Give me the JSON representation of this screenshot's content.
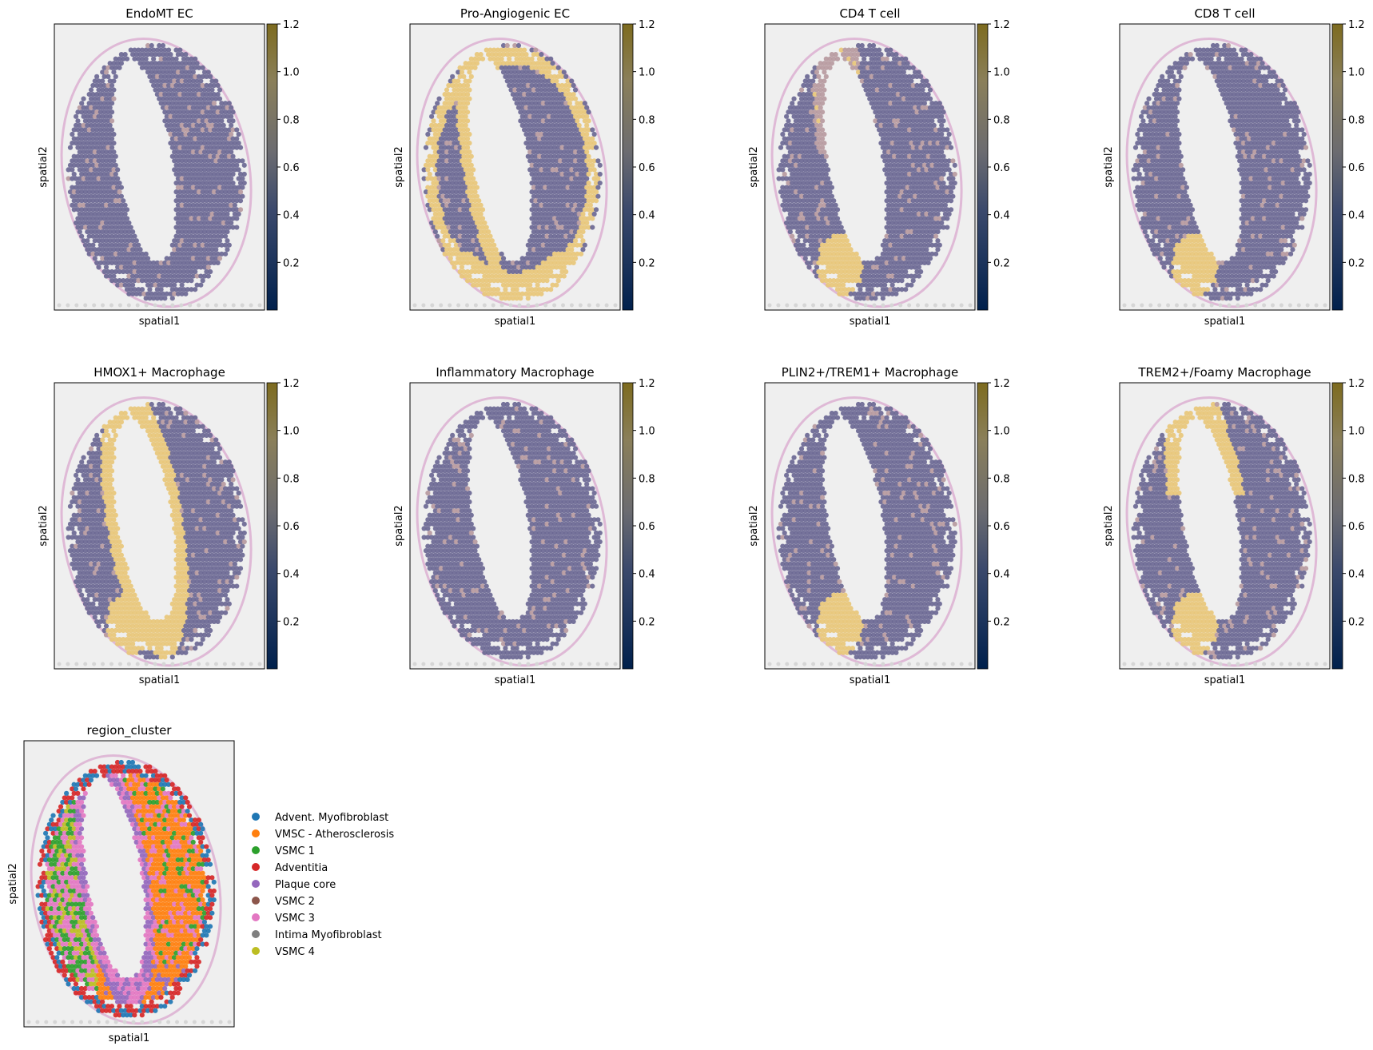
{
  "figure": {
    "panels": [
      {
        "title": "EndoMT EC",
        "xlabel": "spatial1",
        "ylabel": "spatial2"
      },
      {
        "title": "Pro-Angiogenic EC",
        "xlabel": "spatial1",
        "ylabel": "spatial2"
      },
      {
        "title": "CD4 T cell",
        "xlabel": "spatial1",
        "ylabel": "spatial2"
      },
      {
        "title": "CD8 T cell",
        "xlabel": "spatial1",
        "ylabel": "spatial2"
      },
      {
        "title": "HMOX1+ Macrophage",
        "xlabel": "spatial1",
        "ylabel": "spatial2"
      },
      {
        "title": "Inflammatory Macrophage",
        "xlabel": "spatial1",
        "ylabel": "spatial2"
      },
      {
        "title": "PLIN2+/TREM1+ Macrophage",
        "xlabel": "spatial1",
        "ylabel": "spatial2"
      },
      {
        "title": "TREM2+/Foamy Macrophage",
        "xlabel": "spatial1",
        "ylabel": "spatial2"
      }
    ],
    "region_panel": {
      "title": "region_cluster",
      "xlabel": "spatial1",
      "ylabel": "spatial2"
    }
  },
  "chart_data": [
    {
      "type": "heatmap",
      "title": "EndoMT EC",
      "xlabel": "spatial1",
      "ylabel": "spatial2",
      "colorbar": {
        "ticks": [
          "0.2",
          "0.4",
          "0.6",
          "0.8",
          "1.0",
          "1.2"
        ],
        "range": [
          0,
          1.2
        ],
        "colormap": "cividis"
      },
      "hotspots": []
    },
    {
      "type": "heatmap",
      "title": "Pro-Angiogenic EC",
      "xlabel": "spatial1",
      "ylabel": "spatial2",
      "colorbar": {
        "ticks": [
          "0.2",
          "0.4",
          "0.6",
          "0.8",
          "1.0",
          "1.2"
        ],
        "range": [
          0,
          1.2
        ],
        "colormap": "cividis"
      },
      "hotspots": [
        "outer rim",
        "left lumen border",
        "lower rim"
      ]
    },
    {
      "type": "heatmap",
      "title": "CD4 T cell",
      "xlabel": "spatial1",
      "ylabel": "spatial2",
      "colorbar": {
        "ticks": [
          "0.2",
          "0.4",
          "0.6",
          "0.8",
          "1.0",
          "1.2"
        ],
        "range": [
          0,
          1.2
        ],
        "colormap": "cividis"
      },
      "hotspots": [
        "lower lumen border",
        "upper-left lumen border"
      ]
    },
    {
      "type": "heatmap",
      "title": "CD8 T cell",
      "xlabel": "spatial1",
      "ylabel": "spatial2",
      "colorbar": {
        "ticks": [
          "0.2",
          "0.4",
          "0.6",
          "0.8",
          "1.0",
          "1.2"
        ],
        "range": [
          0,
          1.2
        ],
        "colormap": "cividis"
      },
      "hotspots": [
        "lower lumen border"
      ]
    },
    {
      "type": "heatmap",
      "title": "HMOX1+ Macrophage",
      "xlabel": "spatial1",
      "ylabel": "spatial2",
      "colorbar": {
        "ticks": [
          "0.2",
          "0.4",
          "0.6",
          "0.8",
          "1.0",
          "1.2"
        ],
        "range": [
          0,
          1.2
        ],
        "colormap": "cividis"
      },
      "hotspots": [
        "lumen border",
        "lower lumen border"
      ]
    },
    {
      "type": "heatmap",
      "title": "Inflammatory Macrophage",
      "xlabel": "spatial1",
      "ylabel": "spatial2",
      "colorbar": {
        "ticks": [
          "0.2",
          "0.4",
          "0.6",
          "0.8",
          "1.0",
          "1.2"
        ],
        "range": [
          0,
          1.2
        ],
        "colormap": "cividis"
      },
      "hotspots": []
    },
    {
      "type": "heatmap",
      "title": "PLIN2+/TREM1+ Macrophage",
      "xlabel": "spatial1",
      "ylabel": "spatial2",
      "colorbar": {
        "ticks": [
          "0.2",
          "0.4",
          "0.6",
          "0.8",
          "1.0",
          "1.2"
        ],
        "range": [
          0,
          1.2
        ],
        "colormap": "cividis"
      },
      "hotspots": [
        "lower lumen border"
      ]
    },
    {
      "type": "heatmap",
      "title": "TREM2+/Foamy Macrophage",
      "xlabel": "spatial1",
      "ylabel": "spatial2",
      "colorbar": {
        "ticks": [
          "0.2",
          "0.4",
          "0.6",
          "0.8",
          "1.0",
          "1.2"
        ],
        "range": [
          0,
          1.2
        ],
        "colormap": "cividis"
      },
      "hotspots": [
        "upper lumen border",
        "lower lumen border"
      ]
    },
    {
      "type": "scatter",
      "title": "region_cluster",
      "xlabel": "spatial1",
      "ylabel": "spatial2",
      "legend_position": "right",
      "categories": [
        {
          "name": "Advent. Myofibroblast",
          "color": "#1f77b4"
        },
        {
          "name": "VMSC - Atherosclerosis",
          "color": "#ff7f0e"
        },
        {
          "name": "VSMC 1",
          "color": "#2ca02c"
        },
        {
          "name": "Adventitia",
          "color": "#d62728"
        },
        {
          "name": "Plaque core",
          "color": "#9467bd"
        },
        {
          "name": "VSMC 2",
          "color": "#8c564b"
        },
        {
          "name": "VSMC 3",
          "color": "#e377c2"
        },
        {
          "name": "Intima Myofibroblast",
          "color": "#7f7f7f"
        },
        {
          "name": "VSMC 4",
          "color": "#bcbd22"
        }
      ]
    }
  ]
}
